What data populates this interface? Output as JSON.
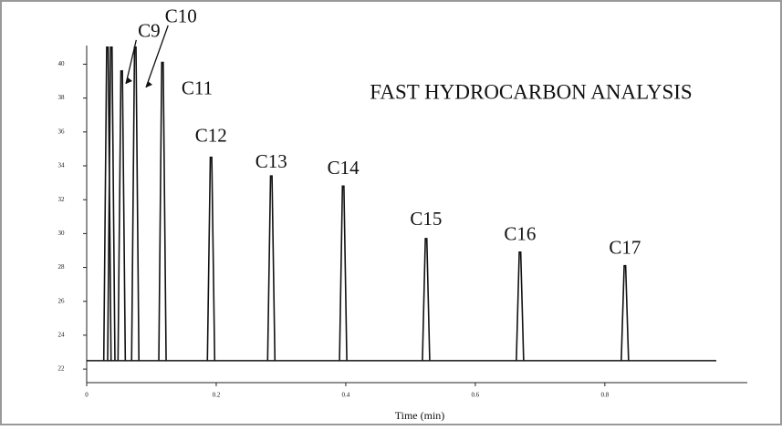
{
  "chart_data": {
    "type": "chromatogram",
    "title": "FAST HYDROCARBON ANALYSIS",
    "x_label": "Time (min)",
    "x": [
      0.032,
      0.038,
      0.054,
      0.075,
      0.117,
      0.192,
      0.285,
      0.396,
      0.524,
      0.669,
      0.831
    ],
    "values": [
      41,
      41,
      39.6,
      41,
      40.1,
      34.5,
      33.4,
      32.8,
      29.7,
      28.9,
      28.1
    ],
    "labels": [
      null,
      null,
      "C9",
      "C10",
      "C11",
      "C12",
      "C13",
      "C14",
      "C15",
      "C16",
      "C17"
    ],
    "baseline": 22.5,
    "color": "#111111",
    "xlim": [
      0,
      1.02
    ],
    "xticks": [
      0,
      0.2,
      0.4,
      0.6,
      0.8
    ],
    "ylim": [
      21.2,
      41.1
    ],
    "yticks": [
      22,
      24,
      26,
      28,
      30,
      32,
      34,
      36,
      38,
      40
    ]
  }
}
